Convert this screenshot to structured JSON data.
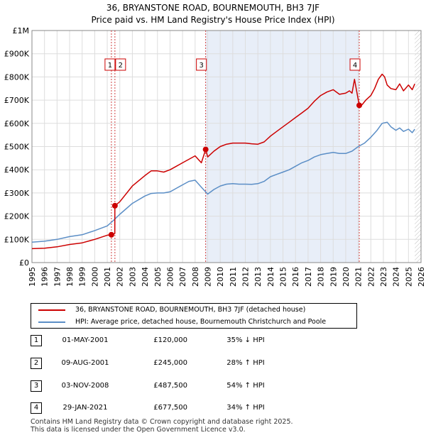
{
  "chart_data": {
    "type": "line",
    "title": "36, BRYANSTONE ROAD, BOURNEMOUTH, BH3 7JF",
    "subtitle": "Price paid vs. HM Land Registry's House Price Index (HPI)",
    "xlim": [
      1995,
      2026
    ],
    "ylim": [
      0,
      1000000
    ],
    "x_ticks": [
      1995,
      1996,
      1997,
      1998,
      1999,
      2000,
      2001,
      2002,
      2003,
      2004,
      2005,
      2006,
      2007,
      2008,
      2009,
      2010,
      2011,
      2012,
      2013,
      2014,
      2015,
      2016,
      2017,
      2018,
      2019,
      2020,
      2021,
      2022,
      2023,
      2024,
      2025,
      2026
    ],
    "y_ticks": [
      {
        "value": 0,
        "label": "£0"
      },
      {
        "value": 100000,
        "label": "£100K"
      },
      {
        "value": 200000,
        "label": "£200K"
      },
      {
        "value": 300000,
        "label": "£300K"
      },
      {
        "value": 400000,
        "label": "£400K"
      },
      {
        "value": 500000,
        "label": "£500K"
      },
      {
        "value": 600000,
        "label": "£600K"
      },
      {
        "value": 700000,
        "label": "£700K"
      },
      {
        "value": 800000,
        "label": "£800K"
      },
      {
        "value": 900000,
        "label": "£900K"
      },
      {
        "value": 1000000,
        "label": "£1M"
      }
    ],
    "grid": true,
    "series": [
      {
        "name": "36, BRYANSTONE ROAD, BOURNEMOUTH, BH3 7JF (detached house)",
        "color": "#cc0000",
        "x": [
          1995,
          1996,
          1997,
          1998,
          1999,
          2000,
          2001.0,
          2001.33,
          2001.34,
          2001.6,
          2001.61,
          2002.0,
          2003.0,
          2004.0,
          2004.5,
          2005.0,
          2005.5,
          2006.0,
          2006.5,
          2007.0,
          2007.5,
          2008.0,
          2008.5,
          2008.84,
          2009.0,
          2009.5,
          2010.0,
          2010.5,
          2011.0,
          2011.5,
          2012.0,
          2012.5,
          2013.0,
          2013.5,
          2014.0,
          2014.5,
          2015.0,
          2015.5,
          2016.0,
          2016.5,
          2017.0,
          2017.5,
          2018.0,
          2018.5,
          2019.0,
          2019.5,
          2020.0,
          2020.3,
          2020.5,
          2020.7,
          2021.08,
          2021.3,
          2021.6,
          2022.0,
          2022.3,
          2022.6,
          2022.9,
          2023.1,
          2023.3,
          2023.6,
          2024.0,
          2024.3,
          2024.6,
          2025.0,
          2025.3,
          2025.5
        ],
        "values": [
          60000,
          62000,
          68000,
          78000,
          85000,
          100000,
          118000,
          120000,
          120000,
          125000,
          245000,
          262000,
          330000,
          375000,
          395000,
          395000,
          390000,
          400000,
          415000,
          430000,
          445000,
          460000,
          430000,
          487500,
          455000,
          480000,
          500000,
          510000,
          515000,
          515000,
          515000,
          512000,
          510000,
          520000,
          545000,
          565000,
          585000,
          605000,
          625000,
          645000,
          665000,
          695000,
          720000,
          735000,
          745000,
          725000,
          730000,
          740000,
          730000,
          790000,
          677500,
          680000,
          700000,
          720000,
          750000,
          790000,
          812000,
          800000,
          765000,
          750000,
          745000,
          770000,
          740000,
          765000,
          745000,
          770000
        ]
      },
      {
        "name": "HPI: Average price, detached house, Bournemouth Christchurch and Poole",
        "color": "#5b8ec6",
        "x": [
          1995,
          1996,
          1997,
          1998,
          1999,
          2000,
          2001.0,
          2001.5,
          2002.0,
          2003.0,
          2004.0,
          2004.5,
          2005.0,
          2005.5,
          2006.0,
          2006.5,
          2007.0,
          2007.5,
          2008.0,
          2008.5,
          2009.0,
          2009.5,
          2010.0,
          2010.5,
          2011.0,
          2011.5,
          2012.0,
          2012.5,
          2013.0,
          2013.5,
          2014.0,
          2014.5,
          2015.0,
          2015.5,
          2016.0,
          2016.5,
          2017.0,
          2017.5,
          2018.0,
          2018.5,
          2019.0,
          2019.5,
          2020.0,
          2020.5,
          2021.0,
          2021.5,
          2022.0,
          2022.5,
          2022.9,
          2023.3,
          2023.6,
          2024.0,
          2024.3,
          2024.6,
          2025.0,
          2025.3,
          2025.5
        ],
        "values": [
          88000,
          92000,
          100000,
          112000,
          120000,
          138000,
          158000,
          182000,
          208000,
          255000,
          287000,
          298000,
          300000,
          300000,
          305000,
          320000,
          335000,
          350000,
          355000,
          325000,
          295000,
          315000,
          330000,
          338000,
          340000,
          338000,
          338000,
          337000,
          340000,
          350000,
          370000,
          380000,
          390000,
          400000,
          415000,
          430000,
          440000,
          455000,
          465000,
          470000,
          475000,
          470000,
          470000,
          480000,
          500000,
          515000,
          540000,
          570000,
          600000,
          605000,
          585000,
          570000,
          580000,
          565000,
          575000,
          560000,
          575000
        ]
      }
    ],
    "annotations": [
      {
        "id": "1",
        "x": 2001.33,
        "y": 120000
      },
      {
        "id": "2",
        "x": 2001.61,
        "y": 245000
      },
      {
        "id": "3",
        "x": 2008.84,
        "y": 487500
      },
      {
        "id": "4",
        "x": 2021.08,
        "y": 677500
      }
    ],
    "shaded_region": [
      2008.84,
      2021.08
    ],
    "future_region_start": 2025.5
  },
  "header": {
    "title": "36, BRYANSTONE ROAD, BOURNEMOUTH, BH3 7JF",
    "subtitle": "Price paid vs. HM Land Registry's House Price Index (HPI)"
  },
  "legend": {
    "property_label": "36, BRYANSTONE ROAD, BOURNEMOUTH, BH3 7JF (detached house)",
    "hpi_label": "HPI: Average price, detached house, Bournemouth Christchurch and Poole"
  },
  "transactions": [
    {
      "num": "1",
      "date": "01-MAY-2001",
      "price": "£120,000",
      "hpi": "35% ↓ HPI"
    },
    {
      "num": "2",
      "date": "09-AUG-2001",
      "price": "£245,000",
      "hpi": "28% ↑ HPI"
    },
    {
      "num": "3",
      "date": "03-NOV-2008",
      "price": "£487,500",
      "hpi": "54% ↑ HPI"
    },
    {
      "num": "4",
      "date": "29-JAN-2021",
      "price": "£677,500",
      "hpi": "34% ↑ HPI"
    }
  ],
  "footer": {
    "line1": "Contains HM Land Registry data © Crown copyright and database right 2025.",
    "line2": "This data is licensed under the Open Government Licence v3.0."
  },
  "colors": {
    "property": "#cc0000",
    "hpi": "#5b8ec6",
    "shade": "#e8eef8",
    "marker_line": "#d04040"
  }
}
